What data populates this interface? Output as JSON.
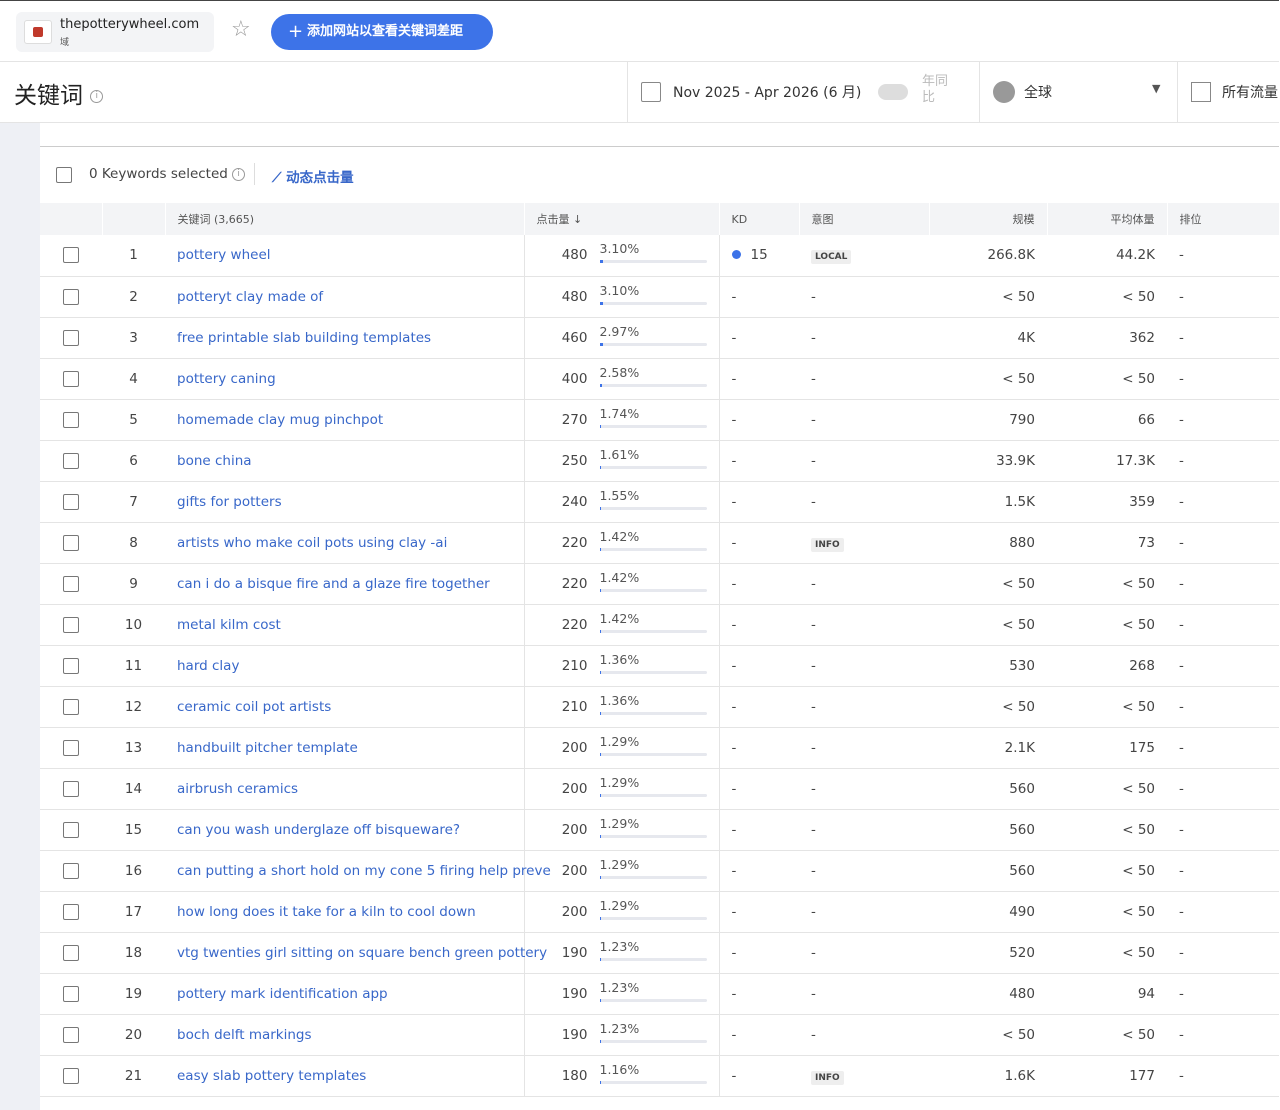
{
  "header": {
    "domain": "thepotterywheel.com",
    "domain_type": "域",
    "add_button": "添加网站以查看关键词差距"
  },
  "toolbar": {
    "title": "关键词",
    "date_range": "Nov 2025 - Apr 2026 (6 月)",
    "yoy": "年同比",
    "region": "全球",
    "traffic": "所有流量"
  },
  "table_bar": {
    "selected": "0 Keywords selected",
    "dynamic": "动态点击量"
  },
  "table": {
    "columns": [
      "关键词 (3,665)",
      "点击量",
      "KD",
      "意图",
      "规模",
      "平均体量",
      "排位"
    ],
    "rows": [
      [
        1,
        "pottery wheel",
        480,
        "3.10%",
        "15",
        "LOCAL",
        "266.8K",
        "44.2K",
        "-"
      ],
      [
        2,
        "potteryt clay made of",
        480,
        "3.10%",
        "-",
        "-",
        "< 50",
        "< 50",
        "-"
      ],
      [
        3,
        "free printable slab building templates",
        460,
        "2.97%",
        "-",
        "-",
        "4K",
        "362",
        "-"
      ],
      [
        4,
        "pottery caning",
        400,
        "2.58%",
        "-",
        "-",
        "< 50",
        "< 50",
        "-"
      ],
      [
        5,
        "homemade clay mug pinchpot",
        270,
        "1.74%",
        "-",
        "-",
        "790",
        "66",
        "-"
      ],
      [
        6,
        "bone china",
        250,
        "1.61%",
        "-",
        "-",
        "33.9K",
        "17.3K",
        "-"
      ],
      [
        7,
        "gifts for potters",
        240,
        "1.55%",
        "-",
        "-",
        "1.5K",
        "359",
        "-"
      ],
      [
        8,
        "artists who make coil pots using clay -ai",
        220,
        "1.42%",
        "-",
        "INFO",
        "880",
        "73",
        "-"
      ],
      [
        9,
        "can i do a bisque fire and a glaze fire together",
        220,
        "1.42%",
        "-",
        "-",
        "< 50",
        "< 50",
        "-"
      ],
      [
        10,
        "metal kilm cost",
        220,
        "1.42%",
        "-",
        "-",
        "< 50",
        "< 50",
        "-"
      ],
      [
        11,
        "hard clay",
        210,
        "1.36%",
        "-",
        "-",
        "530",
        "268",
        "-"
      ],
      [
        12,
        "ceramic coil pot artists",
        210,
        "1.36%",
        "-",
        "-",
        "< 50",
        "< 50",
        "-"
      ],
      [
        13,
        "handbuilt pitcher template",
        200,
        "1.29%",
        "-",
        "-",
        "2.1K",
        "175",
        "-"
      ],
      [
        14,
        "airbrush ceramics",
        200,
        "1.29%",
        "-",
        "-",
        "560",
        "< 50",
        "-"
      ],
      [
        15,
        "can you wash underglaze off bisqueware?",
        200,
        "1.29%",
        "-",
        "-",
        "560",
        "< 50",
        "-"
      ],
      [
        16,
        "can putting a short hold on my cone 5 firing help preve",
        200,
        "1.29%",
        "-",
        "-",
        "560",
        "< 50",
        "-"
      ],
      [
        17,
        "how long does it take for a kiln to cool down",
        200,
        "1.29%",
        "-",
        "-",
        "490",
        "< 50",
        "-"
      ],
      [
        18,
        "vtg twenties girl sitting on square bench green pottery",
        190,
        "1.23%",
        "-",
        "-",
        "520",
        "< 50",
        "-"
      ],
      [
        19,
        "pottery mark identification app",
        190,
        "1.23%",
        "-",
        "-",
        "480",
        "94",
        "-"
      ],
      [
        20,
        "boch delft markings",
        190,
        "1.23%",
        "-",
        "-",
        "< 50",
        "< 50",
        "-"
      ],
      [
        21,
        "easy slab pottery templates",
        180,
        "1.16%",
        "-",
        "INFO",
        "1.6K",
        "177",
        "-"
      ]
    ]
  }
}
